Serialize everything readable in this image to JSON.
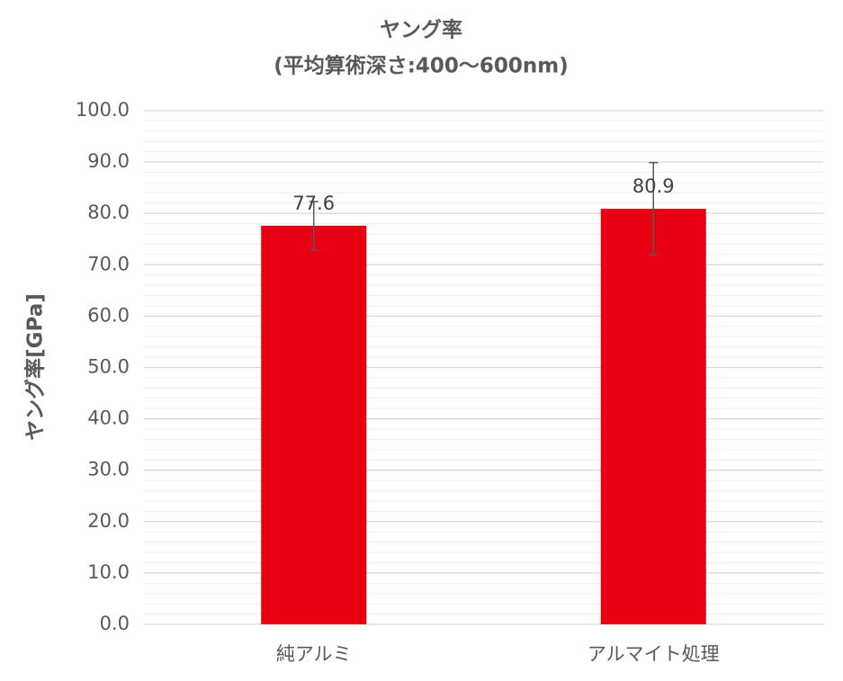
{
  "chart_data": {
    "type": "bar",
    "title": "ヤング率",
    "subtitle": "(平均算術深さ:400～600nm)",
    "y_label": "ヤング率[GPa]",
    "categories": [
      "純アルミ",
      "アルマイト処理"
    ],
    "values": [
      77.6,
      80.9
    ],
    "errors": [
      4.7,
      9.0
    ],
    "color": "#e60012",
    "error_color": "#595959",
    "ylim": [
      0,
      100
    ],
    "yticks": [
      {
        "value": 0,
        "label": "0.0"
      },
      {
        "value": 10,
        "label": "10.0"
      },
      {
        "value": 20,
        "label": "20.0"
      },
      {
        "value": 30,
        "label": "30.0"
      },
      {
        "value": 40,
        "label": "40.0"
      },
      {
        "value": 50,
        "label": "50.0"
      },
      {
        "value": 60,
        "label": "60.0"
      },
      {
        "value": 70,
        "label": "70.0"
      },
      {
        "value": 80,
        "label": "80.0"
      },
      {
        "value": 90,
        "label": "90.0"
      },
      {
        "value": 100,
        "label": "100.0"
      }
    ],
    "minor_yticks": [
      2,
      4,
      6,
      8,
      12,
      14,
      16,
      18,
      22,
      24,
      26,
      28,
      32,
      34,
      36,
      38,
      42,
      44,
      46,
      48,
      52,
      54,
      56,
      58,
      62,
      64,
      66,
      68,
      72,
      74,
      76,
      78,
      82,
      84,
      86,
      88,
      92,
      94,
      96,
      98
    ],
    "grid": true
  }
}
